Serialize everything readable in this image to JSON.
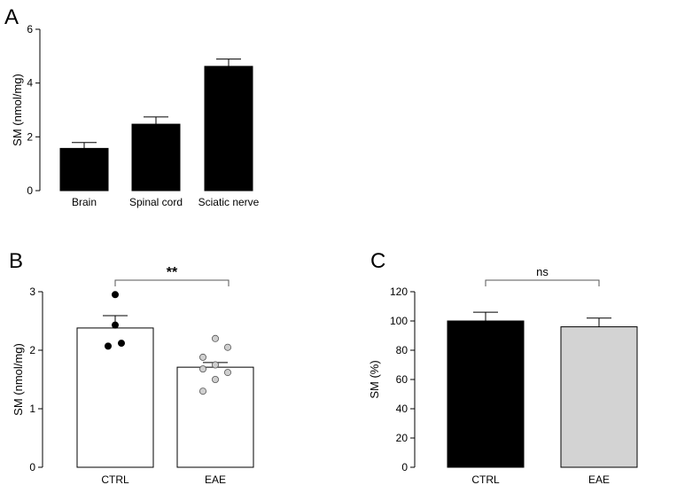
{
  "chart_data": [
    {
      "panel": "A",
      "type": "bar",
      "categories": [
        "Brain",
        "Spinal cord",
        "Sciatic nerve"
      ],
      "values": [
        1.57,
        2.47,
        4.62
      ],
      "errors": [
        0.22,
        0.27,
        0.27
      ],
      "bar_colors": [
        "#000000",
        "#000000",
        "#000000"
      ],
      "xlabel": "",
      "ylabel": "SM (nmol/mg)",
      "ylim": [
        0,
        6
      ],
      "yticks": [
        0,
        2,
        4,
        6
      ]
    },
    {
      "panel": "B",
      "type": "bar",
      "categories": [
        "CTRL",
        "EAE"
      ],
      "values": [
        2.38,
        1.71
      ],
      "errors": [
        0.21,
        0.08
      ],
      "bar_colors": [
        "#ffffff",
        "#ffffff"
      ],
      "points": [
        {
          "category": "CTRL",
          "values": [
            2.95,
            2.43,
            2.12,
            2.07
          ],
          "color": "#000000"
        },
        {
          "category": "EAE",
          "values": [
            2.2,
            2.05,
            1.88,
            1.75,
            1.68,
            1.62,
            1.5,
            1.3
          ],
          "color": "#cfcfcf"
        }
      ],
      "xlabel": "",
      "ylabel": "SM (nmol/mg)",
      "ylim": [
        0,
        3
      ],
      "yticks": [
        0,
        1,
        2,
        3
      ],
      "significance": "**"
    },
    {
      "panel": "C",
      "type": "bar",
      "categories": [
        "CTRL",
        "EAE"
      ],
      "values": [
        100,
        96
      ],
      "errors": [
        6,
        6
      ],
      "bar_colors": [
        "#000000",
        "#d3d3d3"
      ],
      "xlabel": "",
      "ylabel": "SM (%)",
      "ylim": [
        0,
        120
      ],
      "yticks": [
        0,
        20,
        40,
        60,
        80,
        100,
        120
      ],
      "significance": "ns"
    }
  ]
}
